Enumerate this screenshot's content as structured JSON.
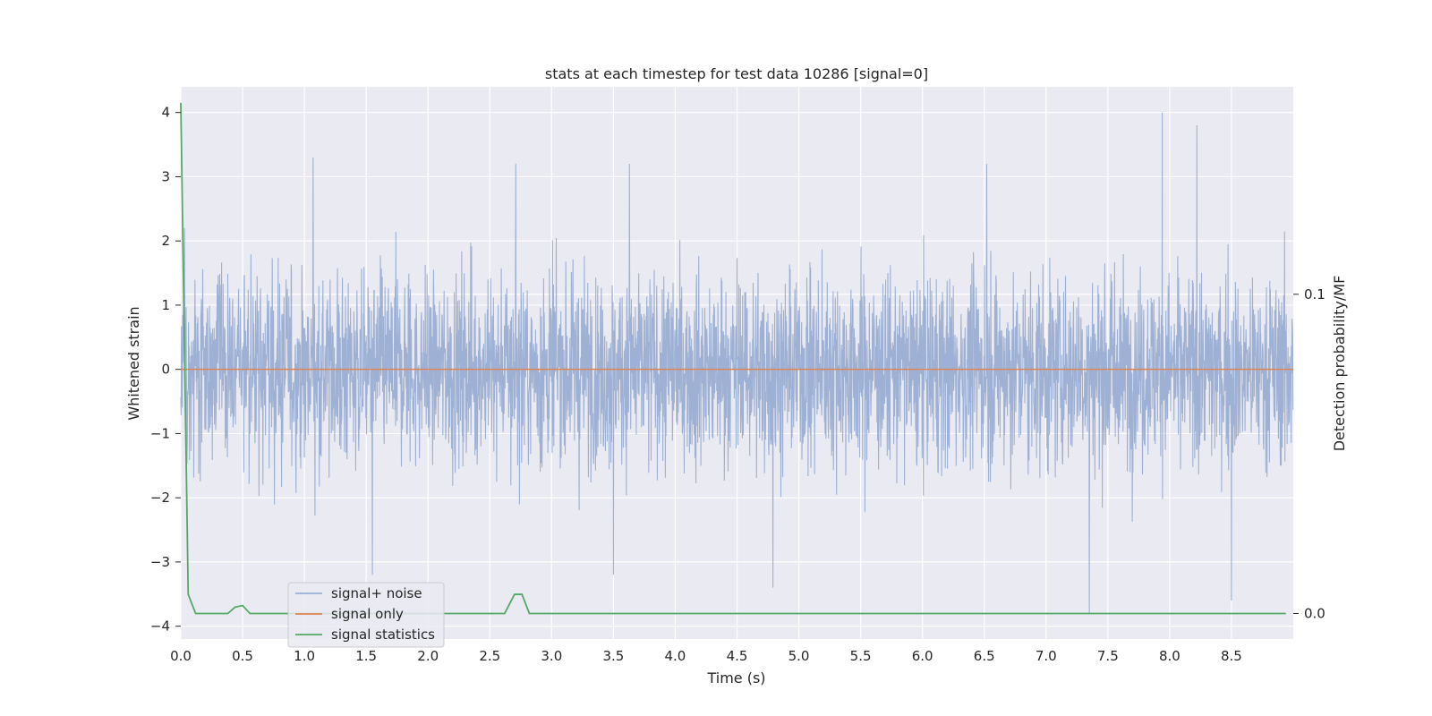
{
  "chart_data": {
    "type": "line",
    "title": "stats at each timestep for test data 10286 [signal=0]",
    "xlabel": "Time (s)",
    "ylabel": "Whitened strain",
    "ylabel_right": "Detection probability/MF",
    "xlim": [
      0.0,
      9.0
    ],
    "ylim": [
      -4.2,
      4.4
    ],
    "ylim_right": [
      -0.008,
      0.165
    ],
    "x_ticks": [
      "0.0",
      "0.5",
      "1.0",
      "1.5",
      "2.0",
      "2.5",
      "3.0",
      "3.5",
      "4.0",
      "4.5",
      "5.0",
      "5.5",
      "6.0",
      "6.5",
      "7.0",
      "7.5",
      "8.0",
      "8.5"
    ],
    "y_ticks": [
      "4",
      "3",
      "2",
      "1",
      "0",
      "−1",
      "−2",
      "−3",
      "−4"
    ],
    "y_right_ticks": [
      "0.1",
      "0.0"
    ],
    "grid": true,
    "legend_position": "lower-left",
    "series": [
      {
        "name": "signal+ noise",
        "color": "#9aaed2",
        "description_values": "noise, approx. range -3.8 to 4.0 over 0.0 to 9.0 s",
        "peaks": [
          {
            "x": 0.03,
            "y": 2.2
          },
          {
            "x": 1.07,
            "y": 3.3
          },
          {
            "x": 2.71,
            "y": 3.2
          },
          {
            "x": 3.63,
            "y": 3.2
          },
          {
            "x": 6.52,
            "y": 3.2
          },
          {
            "x": 7.94,
            "y": 4.0
          },
          {
            "x": 8.22,
            "y": 3.8
          },
          {
            "x": 3.5,
            "y": -3.2
          },
          {
            "x": 4.79,
            "y": -3.4
          },
          {
            "x": 7.35,
            "y": -3.8
          },
          {
            "x": 8.5,
            "y": -3.6
          },
          {
            "x": 1.55,
            "y": -3.2
          }
        ]
      },
      {
        "name": "signal only",
        "color": "#dd8452",
        "x": [
          0.0,
          9.0
        ],
        "y": [
          0.0,
          0.0
        ]
      },
      {
        "name": "signal statistics",
        "color": "#55a868",
        "axis": "right",
        "x": [
          0.0,
          0.06,
          0.12,
          0.2,
          0.38,
          0.44,
          0.5,
          0.56,
          0.62,
          2.56,
          2.62,
          2.7,
          2.76,
          2.82,
          8.94
        ],
        "y": [
          0.16,
          0.006,
          0.0,
          0.0,
          0.0,
          0.002,
          0.0025,
          0.0,
          0.0,
          0.0,
          0.0,
          0.006,
          0.006,
          0.0,
          0.0
        ]
      }
    ]
  }
}
